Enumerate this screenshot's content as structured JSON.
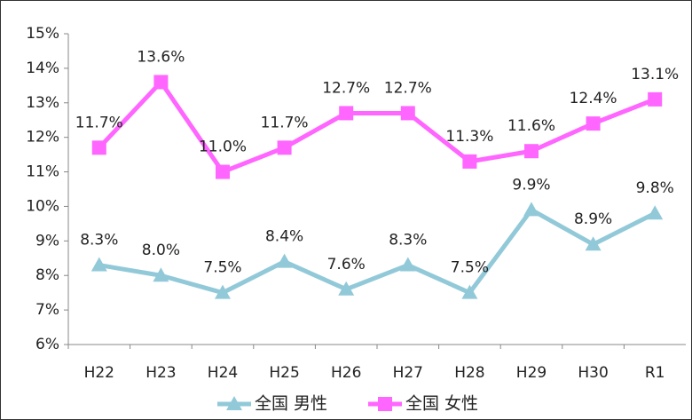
{
  "chart_data": {
    "type": "line",
    "categories": [
      "H22",
      "H23",
      "H24",
      "H25",
      "H26",
      "H27",
      "H28",
      "H29",
      "H30",
      "R1"
    ],
    "series": [
      {
        "name": "全国 男性",
        "color": "#92c9d9",
        "marker": "triangle",
        "values": [
          8.3,
          8.0,
          7.5,
          8.4,
          7.6,
          8.3,
          7.5,
          9.9,
          8.9,
          9.8
        ],
        "value_labels": [
          "8.3%",
          "8.0%",
          "7.5%",
          "8.4%",
          "7.6%",
          "8.3%",
          "7.5%",
          "9.9%",
          "8.9%",
          "9.8%"
        ]
      },
      {
        "name": "全国 女性",
        "color": "#ff66ff",
        "marker": "square",
        "values": [
          11.7,
          13.6,
          11.0,
          11.7,
          12.7,
          12.7,
          11.3,
          11.6,
          12.4,
          13.1
        ],
        "value_labels": [
          "11.7%",
          "13.6%",
          "11.0%",
          "11.7%",
          "12.7%",
          "12.7%",
          "11.3%",
          "11.6%",
          "12.4%",
          "13.1%"
        ]
      }
    ],
    "ylim": [
      6,
      15
    ],
    "yticks": [
      {
        "value": 6,
        "label": "6%"
      },
      {
        "value": 7,
        "label": "7%"
      },
      {
        "value": 8,
        "label": "8%"
      },
      {
        "value": 9,
        "label": "9%"
      },
      {
        "value": 10,
        "label": "10%"
      },
      {
        "value": 11,
        "label": "11%"
      },
      {
        "value": 12,
        "label": "12%"
      },
      {
        "value": 13,
        "label": "13%"
      },
      {
        "value": 14,
        "label": "14%"
      },
      {
        "value": 15,
        "label": "15%"
      }
    ],
    "legend": "bottom"
  }
}
